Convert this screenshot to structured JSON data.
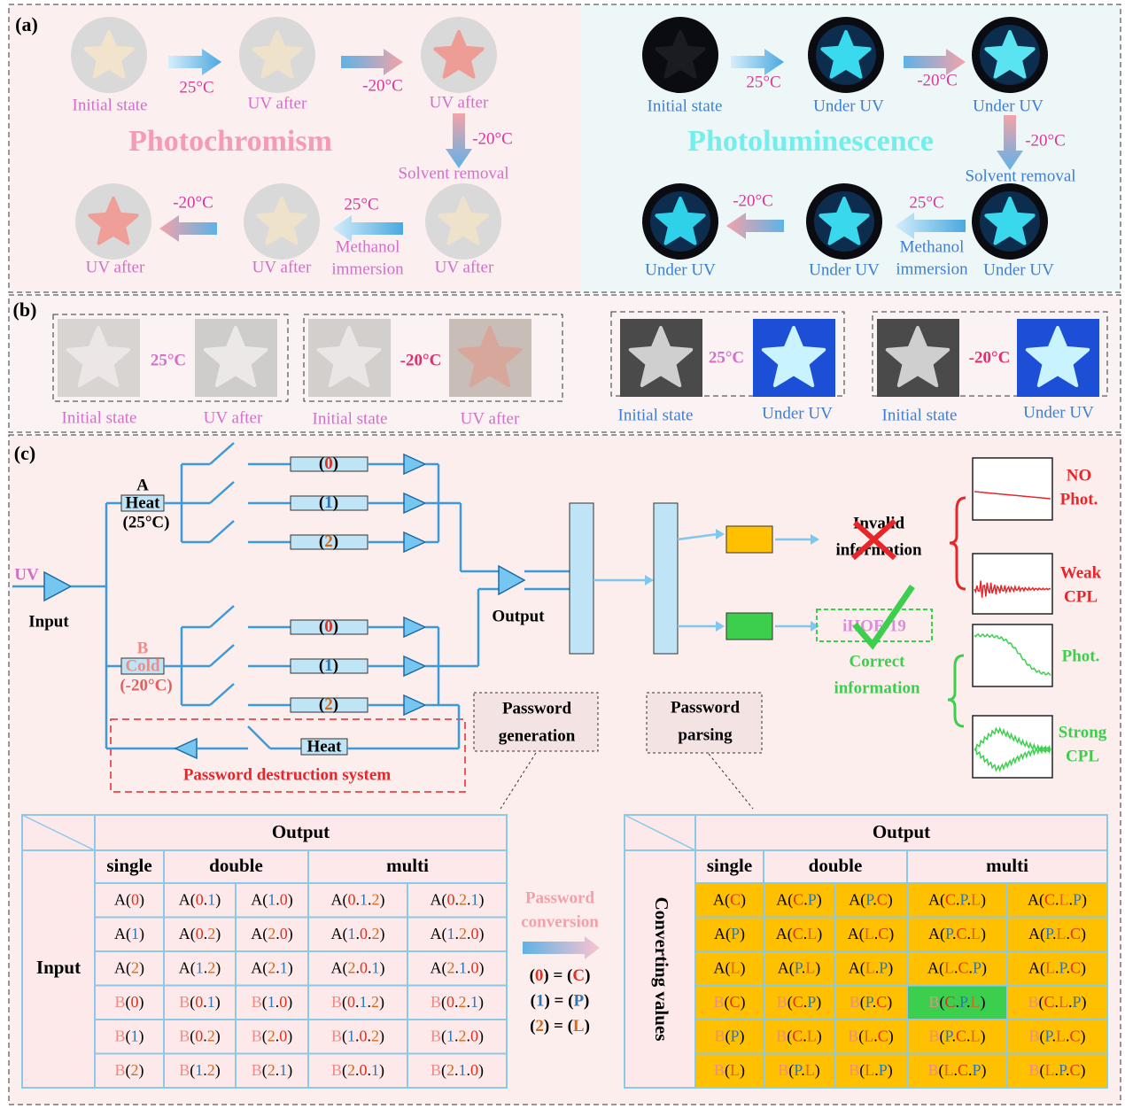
{
  "panel_a": {
    "label": "(a)",
    "photochromism": {
      "title": "Photochromism",
      "captions": [
        "Initial state",
        "UV after",
        "UV after",
        "UV after",
        "UV after",
        "UV after"
      ],
      "steps": [
        {
          "temp": "25°C"
        },
        {
          "temp": "-20°C"
        },
        {
          "temp": "-20°C",
          "note": [
            "Solvent removal"
          ]
        },
        {
          "temp": "25°C",
          "note": [
            "Methanol",
            "immersion"
          ]
        },
        {
          "temp": "-20°C"
        }
      ]
    },
    "photoluminescence": {
      "title": "Photoluminescence",
      "captions": [
        "Initial state",
        "Under UV",
        "Under UV",
        "Under UV",
        "Under UV",
        "Under UV"
      ],
      "steps": [
        {
          "temp": "25°C"
        },
        {
          "temp": "-20°C"
        },
        {
          "temp": "-20°C",
          "note": [
            "Solvent removal"
          ]
        },
        {
          "temp": "25°C",
          "note": [
            "Methanol",
            "immersion"
          ]
        },
        {
          "temp": "-20°C"
        }
      ]
    }
  },
  "panel_b": {
    "label": "(b)",
    "groups": [
      {
        "temp": "25°C",
        "captions": [
          "Initial state",
          "UV after"
        ]
      },
      {
        "temp": "-20°C",
        "captions": [
          "Initial state",
          "UV after"
        ]
      },
      {
        "temp": "25°C",
        "captions": [
          "Initial state",
          "Under UV"
        ]
      },
      {
        "temp": "-20°C",
        "captions": [
          "Initial state",
          "Under UV"
        ]
      }
    ]
  },
  "panel_c": {
    "label": "(c)",
    "circuit": {
      "source": "UV",
      "input": "Input",
      "output": "Output",
      "a": {
        "name": "A",
        "mode": "Heat",
        "temp": "(25°C)",
        "channels": [
          "(0)",
          "(1)",
          "(2)"
        ]
      },
      "b": {
        "name": "B",
        "mode": "Cold",
        "temp": "(-20°C)",
        "channels": [
          "(0)",
          "(1)",
          "(2)"
        ]
      },
      "destruction": {
        "mode": "Heat",
        "title": "Password destruction system"
      },
      "generation": [
        "Password",
        "generation"
      ],
      "parsing": [
        "Password",
        "parsing"
      ]
    },
    "results": {
      "invalid": [
        "Invalid",
        "information"
      ],
      "code": "iHOF-19",
      "correct": [
        "Correct",
        "information"
      ],
      "signals": [
        [
          "NO",
          "Phot."
        ],
        [
          "Weak",
          "CPL"
        ],
        [
          "Phot."
        ],
        [
          "Strong",
          "CPL"
        ]
      ]
    },
    "input_table": {
      "header": "Output",
      "subheaders": [
        "single",
        "double",
        "multi"
      ],
      "row_header": "Input",
      "rows": [
        [
          "A(0)",
          "A(0.1)",
          "A(1.0)",
          "A(0.1.2)",
          "A(0.2.1)"
        ],
        [
          "A(1)",
          "A(0.2)",
          "A(2.0)",
          "A(1.0.2)",
          "A(1.2.0)"
        ],
        [
          "A(2)",
          "A(1.2)",
          "A(2.1)",
          "A(2.0.1)",
          "A(2.1.0)"
        ],
        [
          "B(0)",
          "B(0.1)",
          "B(1.0)",
          "B(0.1.2)",
          "B(0.2.1)"
        ],
        [
          "B(1)",
          "B(0.2)",
          "B(2.0)",
          "B(1.0.2)",
          "B(1.2.0)"
        ],
        [
          "B(2)",
          "B(1.2)",
          "B(2.1)",
          "B(2.0.1)",
          "B(2.1.0)"
        ]
      ]
    },
    "conversion": {
      "title": [
        "Password",
        "conversion"
      ],
      "rules": [
        "(0) = (C)",
        "(1) = (P)",
        "(2) = (L)"
      ]
    },
    "output_table": {
      "header": "Output",
      "subheaders": [
        "single",
        "double",
        "multi"
      ],
      "row_header": "Converting values",
      "rows": [
        [
          "A(C)",
          "A(C.P)",
          "A(P.C)",
          "A(C.P.L)",
          "A(C.L.P)"
        ],
        [
          "A(P)",
          "A(C.L)",
          "A(L.C)",
          "A(P.C.L)",
          "A(P.L.C)"
        ],
        [
          "A(L)",
          "A(P.L)",
          "A(L.P)",
          "A(L.C.P)",
          "A(L.P.C)"
        ],
        [
          "B(C)",
          "B(C.P)",
          "B(P.C)",
          "B(C.P.L)",
          "B(C.L.P)"
        ],
        [
          "B(P)",
          "B(C.L)",
          "B(L.C)",
          "B(P.C.L)",
          "B(P.L.C)"
        ],
        [
          "B(L)",
          "B(P.L)",
          "B(L.P)",
          "B(L.C.P)",
          "B(L.P.C)"
        ]
      ]
    }
  }
}
